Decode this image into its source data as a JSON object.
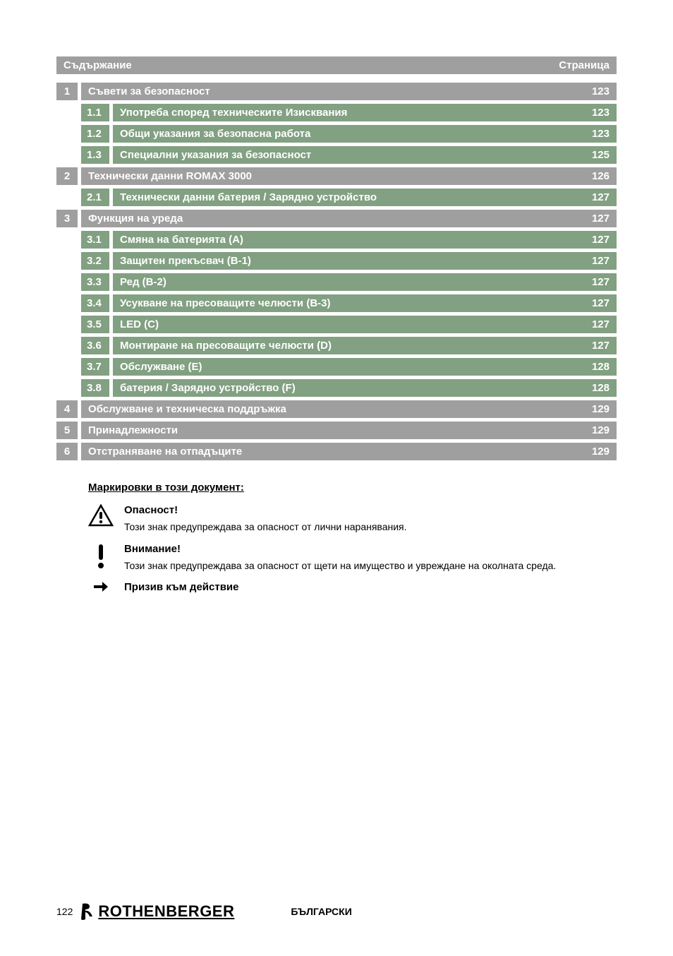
{
  "header": {
    "left": "Съдържание",
    "right": "Страница"
  },
  "toc": [
    {
      "level": 1,
      "num": "1",
      "title": "Съвети за безопасност",
      "page": "123"
    },
    {
      "level": 2,
      "num": "1.1",
      "title": "Употреба според техническите Изисквания",
      "page": "123"
    },
    {
      "level": 2,
      "num": "1.2",
      "title": "Общи указания за безопасна работа",
      "page": "123"
    },
    {
      "level": 2,
      "num": "1.3",
      "title": "Специални указания за безопасност",
      "page": "125"
    },
    {
      "level": 1,
      "num": "2",
      "title": "Технически данни ROMAX 3000",
      "page": "126"
    },
    {
      "level": 2,
      "num": "2.1",
      "title": "Технически данни батерия / Зарядно устройство",
      "page": "127"
    },
    {
      "level": 1,
      "num": "3",
      "title": "Функция на уреда",
      "page": "127"
    },
    {
      "level": 2,
      "num": "3.1",
      "title": "Смяна на батерията (A)",
      "page": "127"
    },
    {
      "level": 2,
      "num": "3.2",
      "title": "Защитен прекъсвач (B-1)",
      "page": "127"
    },
    {
      "level": 2,
      "num": "3.3",
      "title": "Ред (B-2)",
      "page": "127"
    },
    {
      "level": 2,
      "num": "3.4",
      "title": "Усукване на пресоващите челюсти (B-3)",
      "page": "127"
    },
    {
      "level": 2,
      "num": "3.5",
      "title": "LED (C)",
      "page": "127"
    },
    {
      "level": 2,
      "num": "3.6",
      "title": "Монтиране на пресоващите челюсти (D)",
      "page": "127"
    },
    {
      "level": 2,
      "num": "3.7",
      "title": "Обслужване (E)",
      "page": "128"
    },
    {
      "level": 2,
      "num": "3.8",
      "title": "батерия / Зарядно устройство (F)",
      "page": "128"
    },
    {
      "level": 1,
      "num": "4",
      "title": "Обслужване и техническа поддръжка",
      "page": "129"
    },
    {
      "level": 1,
      "num": "5",
      "title": "Принадлежности",
      "page": "129"
    },
    {
      "level": 1,
      "num": "6",
      "title": "Отстраняване на отпадъците",
      "page": "129"
    }
  ],
  "markings": {
    "section_title": "Маркировки в този документ:",
    "items": [
      {
        "icon": "warning-triangle",
        "heading": "Опасност!",
        "text": "Този знак предупреждава за опасност от лични наранявания."
      },
      {
        "icon": "exclamation",
        "heading": "Внимание!",
        "text": "Този знак предупреждава за опасност от щети на имущество и увреждане на околната среда."
      },
      {
        "icon": "arrow",
        "heading": "Призив към действие",
        "text": ""
      }
    ]
  },
  "footer": {
    "page_num": "122",
    "brand": "ROTHENBERGER",
    "language": "БЪЛГАРСКИ"
  },
  "colors": {
    "gray_bg": "#9f9f9f",
    "green_bg": "#82a082",
    "white": "#ffffff",
    "black": "#000000"
  }
}
